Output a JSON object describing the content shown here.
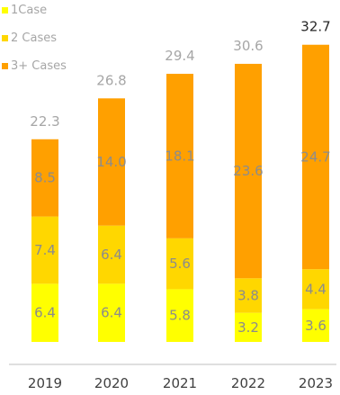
{
  "chart_data": {
    "type": "bar",
    "stacked": true,
    "categories": [
      "2019",
      "2020",
      "2021",
      "2022",
      "2023"
    ],
    "series": [
      {
        "name": "1Case",
        "color": "#ffff00",
        "values": [
          6.4,
          6.4,
          5.8,
          3.2,
          3.6
        ]
      },
      {
        "name": "2 Cases",
        "color": "#ffd700",
        "values": [
          7.4,
          6.4,
          5.6,
          3.8,
          4.4
        ]
      },
      {
        "name": "3+ Cases",
        "color": "#ffa000",
        "values": [
          8.5,
          14.0,
          18.1,
          23.6,
          24.7
        ]
      }
    ],
    "totals": [
      "22.3",
      "26.8",
      "29.4",
      "30.6",
      "32.7"
    ],
    "segment_labels": [
      [
        "6.4",
        "6.4",
        "5.8",
        "3.2",
        "3.6"
      ],
      [
        "7.4",
        "6.4",
        "5.6",
        "3.8",
        "4.4"
      ],
      [
        "8.5",
        "14.0",
        "18.1",
        "23.6",
        "24.7"
      ]
    ],
    "ylim": [
      0,
      33
    ],
    "legend_position": "top-left",
    "grid": false
  }
}
